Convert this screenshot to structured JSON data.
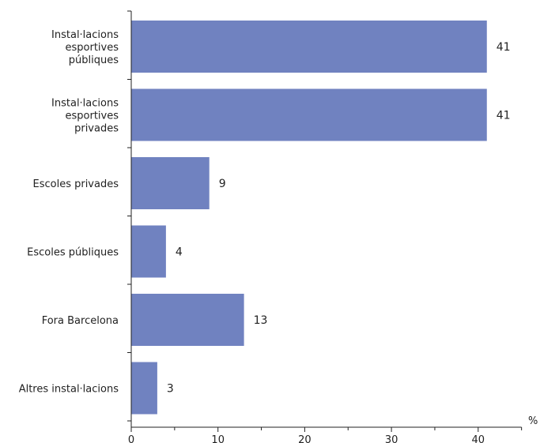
{
  "chart_data": {
    "type": "bar",
    "orientation": "horizontal",
    "categories": [
      [
        "Instal·lacions",
        "esportives",
        "públiques"
      ],
      [
        "Instal·lacions",
        "esportives",
        "privades"
      ],
      [
        "Escoles privades"
      ],
      [
        "Escoles públiques"
      ],
      [
        "Fora Barcelona"
      ],
      [
        "Altres instal·lacions"
      ]
    ],
    "values": [
      41,
      41,
      9,
      4,
      13,
      3
    ],
    "value_labels": [
      "41",
      "41",
      "9",
      "4",
      "13",
      "3"
    ],
    "xlim": [
      0,
      45
    ],
    "x_ticks": [
      0,
      10,
      20,
      30,
      40
    ],
    "x_tick_labels": [
      "0",
      "10",
      "20",
      "30",
      "40"
    ],
    "x_unit": "%",
    "bar_color": "#7082c0",
    "grid": false
  }
}
